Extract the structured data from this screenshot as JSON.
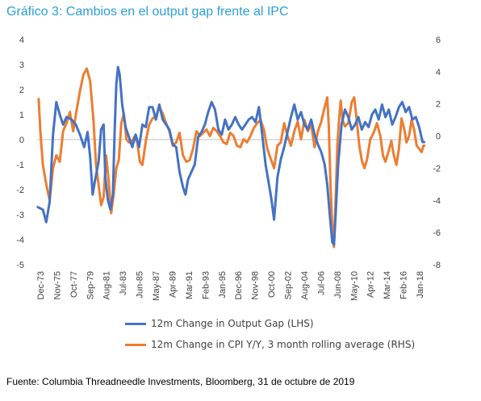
{
  "title": "Gráfico 3: Cambios en el output gap frente al IPC",
  "source": "Fuente: Columbia Threadneedle Investments, Bloomberg, 31 de octubre de 2019",
  "colors": {
    "gap": "#4472C4",
    "cpi": "#ED7D31",
    "axis": "#404040",
    "zero": "#BFBFBF"
  },
  "chart_data": {
    "type": "line",
    "title": "Gráfico 3: Cambios en el output gap frente al IPC",
    "left_axis": {
      "min": -5,
      "max": 4,
      "ticks": [
        "4",
        "3",
        "2",
        "1",
        "0",
        "-1",
        "-2",
        "-3",
        "-4",
        "-5"
      ]
    },
    "right_axis": {
      "min": -8,
      "max": 6,
      "ticks": [
        "6",
        "4",
        "2",
        "0",
        "-2",
        "-4",
        "-6",
        "-8"
      ]
    },
    "x_tick_labels": [
      "Dec-73",
      "Nov-75",
      "Oct-77",
      "Sep-79",
      "Aug-81",
      "Jul-83",
      "Jun-85",
      "May-87",
      "Apr-89",
      "Mar-91",
      "Feb-93",
      "Jan-95",
      "Dec-96",
      "Nov-98",
      "Oct-00",
      "Sep-02",
      "Aug-04",
      "Jul-06",
      "Jun-08",
      "May-10",
      "Apr-12",
      "Mar-14",
      "Feb-16",
      "Jan-18"
    ],
    "x_range": [
      1973.92,
      2019.83
    ],
    "grid": false,
    "legend_position": "bottom",
    "series": [
      {
        "name": "12m Change in Output Gap (LHS)",
        "axis": "left",
        "points": [
          [
            1974.0,
            -2.7
          ],
          [
            1974.6,
            -2.8
          ],
          [
            1975.0,
            -3.3
          ],
          [
            1975.4,
            -2.5
          ],
          [
            1975.8,
            0.2
          ],
          [
            1976.2,
            1.5
          ],
          [
            1976.6,
            1.0
          ],
          [
            1977.0,
            0.6
          ],
          [
            1977.4,
            0.9
          ],
          [
            1978.0,
            0.8
          ],
          [
            1978.5,
            0.6
          ],
          [
            1979.0,
            0.2
          ],
          [
            1979.5,
            -0.3
          ],
          [
            1979.9,
            0.3
          ],
          [
            1980.2,
            -0.7
          ],
          [
            1980.5,
            -2.2
          ],
          [
            1980.8,
            -1.6
          ],
          [
            1981.2,
            -0.9
          ],
          [
            1981.5,
            0.4
          ],
          [
            1981.8,
            0.6
          ],
          [
            1982.0,
            -1.5
          ],
          [
            1982.3,
            -2.4
          ],
          [
            1982.6,
            -2.8
          ],
          [
            1982.9,
            -2.2
          ],
          [
            1983.1,
            0.3
          ],
          [
            1983.3,
            2.2
          ],
          [
            1983.5,
            2.9
          ],
          [
            1983.7,
            2.6
          ],
          [
            1984.0,
            1.4
          ],
          [
            1984.4,
            0.5
          ],
          [
            1984.8,
            0.1
          ],
          [
            1985.2,
            -0.3
          ],
          [
            1985.6,
            0.2
          ],
          [
            1986.0,
            -0.3
          ],
          [
            1986.4,
            0.6
          ],
          [
            1986.8,
            0.5
          ],
          [
            1987.2,
            1.3
          ],
          [
            1987.6,
            1.3
          ],
          [
            1988.0,
            0.8
          ],
          [
            1988.4,
            1.4
          ],
          [
            1988.8,
            0.8
          ],
          [
            1989.2,
            0.6
          ],
          [
            1989.6,
            0.4
          ],
          [
            1990.0,
            -0.2
          ],
          [
            1990.4,
            -0.3
          ],
          [
            1990.8,
            -1.3
          ],
          [
            1991.2,
            -1.9
          ],
          [
            1991.5,
            -2.2
          ],
          [
            1991.8,
            -1.6
          ],
          [
            1992.2,
            -1.3
          ],
          [
            1992.6,
            -1.0
          ],
          [
            1993.0,
            0.1
          ],
          [
            1993.4,
            0.3
          ],
          [
            1993.8,
            0.6
          ],
          [
            1994.2,
            1.1
          ],
          [
            1994.6,
            1.5
          ],
          [
            1995.0,
            1.2
          ],
          [
            1995.4,
            0.4
          ],
          [
            1995.8,
            0.2
          ],
          [
            1996.2,
            0.8
          ],
          [
            1996.6,
            0.4
          ],
          [
            1997.0,
            0.6
          ],
          [
            1997.4,
            0.9
          ],
          [
            1997.8,
            0.6
          ],
          [
            1998.2,
            0.4
          ],
          [
            1998.6,
            0.6
          ],
          [
            1999.0,
            0.8
          ],
          [
            1999.4,
            0.9
          ],
          [
            1999.8,
            0.7
          ],
          [
            2000.2,
            1.3
          ],
          [
            2000.6,
            0.2
          ],
          [
            2001.0,
            -1.0
          ],
          [
            2001.4,
            -1.8
          ],
          [
            2001.7,
            -2.4
          ],
          [
            2002.0,
            -3.2
          ],
          [
            2002.4,
            -1.5
          ],
          [
            2002.8,
            -0.8
          ],
          [
            2003.2,
            -0.3
          ],
          [
            2003.6,
            0.3
          ],
          [
            2004.0,
            0.9
          ],
          [
            2004.4,
            1.4
          ],
          [
            2004.8,
            0.8
          ],
          [
            2005.2,
            1.1
          ],
          [
            2005.6,
            0.6
          ],
          [
            2006.0,
            0.4
          ],
          [
            2006.4,
            0.8
          ],
          [
            2006.8,
            0.2
          ],
          [
            2007.2,
            -0.2
          ],
          [
            2007.6,
            -0.5
          ],
          [
            2008.0,
            -1.0
          ],
          [
            2008.3,
            -1.8
          ],
          [
            2008.6,
            -3.0
          ],
          [
            2008.9,
            -4.1
          ],
          [
            2009.1,
            -4.2
          ],
          [
            2009.3,
            -3.0
          ],
          [
            2009.6,
            -1.0
          ],
          [
            2010.0,
            0.6
          ],
          [
            2010.4,
            1.2
          ],
          [
            2010.8,
            0.9
          ],
          [
            2011.2,
            0.4
          ],
          [
            2011.6,
            0.6
          ],
          [
            2012.0,
            0.9
          ],
          [
            2012.4,
            0.4
          ],
          [
            2012.8,
            0.7
          ],
          [
            2013.2,
            0.5
          ],
          [
            2013.6,
            1.0
          ],
          [
            2014.0,
            1.2
          ],
          [
            2014.4,
            0.8
          ],
          [
            2014.8,
            1.4
          ],
          [
            2015.2,
            0.9
          ],
          [
            2015.6,
            1.2
          ],
          [
            2016.0,
            0.6
          ],
          [
            2016.4,
            0.9
          ],
          [
            2016.8,
            1.3
          ],
          [
            2017.2,
            1.5
          ],
          [
            2017.6,
            1.1
          ],
          [
            2018.0,
            1.3
          ],
          [
            2018.4,
            0.8
          ],
          [
            2018.8,
            0.9
          ],
          [
            2019.2,
            0.5
          ],
          [
            2019.6,
            -0.1
          ],
          [
            2019.8,
            -0.1
          ]
        ]
      },
      {
        "name": "12m Change in CPI Y/Y, 3 month rolling average (RHS)",
        "axis": "right",
        "points": [
          [
            1974.1,
            2.3
          ],
          [
            1974.3,
            0.3
          ],
          [
            1974.6,
            -1.8
          ],
          [
            1975.0,
            -3.0
          ],
          [
            1975.4,
            -4.0
          ],
          [
            1975.8,
            -2.0
          ],
          [
            1976.2,
            -1.2
          ],
          [
            1976.6,
            -1.6
          ],
          [
            1977.0,
            0.3
          ],
          [
            1977.4,
            0.8
          ],
          [
            1977.8,
            1.5
          ],
          [
            1978.2,
            0.3
          ],
          [
            1978.6,
            1.6
          ],
          [
            1979.0,
            2.8
          ],
          [
            1979.4,
            3.8
          ],
          [
            1979.8,
            4.2
          ],
          [
            1980.2,
            3.4
          ],
          [
            1980.6,
            1.0
          ],
          [
            1980.9,
            -1.8
          ],
          [
            1981.2,
            -3.0
          ],
          [
            1981.5,
            -4.3
          ],
          [
            1981.8,
            -3.8
          ],
          [
            1982.1,
            -1.2
          ],
          [
            1982.4,
            -2.8
          ],
          [
            1982.7,
            -4.8
          ],
          [
            1983.0,
            -3.6
          ],
          [
            1983.3,
            -2.0
          ],
          [
            1983.6,
            -1.5
          ],
          [
            1983.9,
            0.8
          ],
          [
            1984.2,
            1.4
          ],
          [
            1984.5,
            -0.2
          ],
          [
            1984.8,
            -0.4
          ],
          [
            1985.2,
            -0.3
          ],
          [
            1985.5,
            0.0
          ],
          [
            1985.8,
            -0.4
          ],
          [
            1986.1,
            -1.6
          ],
          [
            1986.4,
            -1.8
          ],
          [
            1986.8,
            -0.3
          ],
          [
            1987.2,
            0.7
          ],
          [
            1987.6,
            1.1
          ],
          [
            1988.0,
            1.2
          ],
          [
            1988.4,
            1.8
          ],
          [
            1988.8,
            1.4
          ],
          [
            1989.2,
            0.8
          ],
          [
            1989.6,
            0.3
          ],
          [
            1990.0,
            -0.6
          ],
          [
            1990.4,
            -0.4
          ],
          [
            1990.8,
            0.2
          ],
          [
            1991.2,
            -1.2
          ],
          [
            1991.6,
            -1.6
          ],
          [
            1992.0,
            -1.5
          ],
          [
            1992.4,
            -0.8
          ],
          [
            1992.8,
            0.3
          ],
          [
            1993.2,
            0.0
          ],
          [
            1993.6,
            0.2
          ],
          [
            1994.0,
            0.4
          ],
          [
            1994.4,
            0.0
          ],
          [
            1994.8,
            0.5
          ],
          [
            1995.2,
            0.3
          ],
          [
            1995.6,
            0.0
          ],
          [
            1996.0,
            -0.4
          ],
          [
            1996.4,
            -0.5
          ],
          [
            1996.8,
            0.2
          ],
          [
            1997.2,
            0.0
          ],
          [
            1997.6,
            -0.6
          ],
          [
            1998.0,
            -0.7
          ],
          [
            1998.4,
            -0.2
          ],
          [
            1998.8,
            -0.4
          ],
          [
            1999.2,
            0.0
          ],
          [
            1999.6,
            0.5
          ],
          [
            2000.0,
            0.8
          ],
          [
            2000.4,
            1.0
          ],
          [
            2000.8,
            0.4
          ],
          [
            2001.2,
            -0.8
          ],
          [
            2001.6,
            -1.4
          ],
          [
            2002.0,
            -2.0
          ],
          [
            2002.4,
            -0.6
          ],
          [
            2002.8,
            -0.4
          ],
          [
            2003.2,
            0.8
          ],
          [
            2003.6,
            0.0
          ],
          [
            2004.0,
            -0.6
          ],
          [
            2004.4,
            0.3
          ],
          [
            2004.8,
            0.9
          ],
          [
            2005.2,
            -0.2
          ],
          [
            2005.6,
            1.0
          ],
          [
            2006.0,
            0.3
          ],
          [
            2006.4,
            0.7
          ],
          [
            2006.8,
            -0.7
          ],
          [
            2007.2,
            0.3
          ],
          [
            2007.6,
            0.9
          ],
          [
            2008.0,
            1.8
          ],
          [
            2008.3,
            2.4
          ],
          [
            2008.5,
            0.5
          ],
          [
            2008.7,
            -3.2
          ],
          [
            2008.9,
            -5.5
          ],
          [
            2009.1,
            -6.9
          ],
          [
            2009.3,
            -4.0
          ],
          [
            2009.5,
            -0.6
          ],
          [
            2009.7,
            1.0
          ],
          [
            2009.9,
            2.2
          ],
          [
            2010.1,
            1.0
          ],
          [
            2010.4,
            0.6
          ],
          [
            2010.8,
            0.8
          ],
          [
            2011.2,
            2.1
          ],
          [
            2011.5,
            2.4
          ],
          [
            2011.8,
            1.0
          ],
          [
            2012.1,
            -0.6
          ],
          [
            2012.4,
            -1.5
          ],
          [
            2012.7,
            -2.0
          ],
          [
            2013.0,
            -1.5
          ],
          [
            2013.4,
            -0.2
          ],
          [
            2013.8,
            0.2
          ],
          [
            2014.2,
            0.8
          ],
          [
            2014.6,
            0.0
          ],
          [
            2014.9,
            -1.2
          ],
          [
            2015.2,
            -1.6
          ],
          [
            2015.6,
            -0.9
          ],
          [
            2015.9,
            -0.3
          ],
          [
            2016.2,
            -1.2
          ],
          [
            2016.5,
            -1.8
          ],
          [
            2016.8,
            -0.8
          ],
          [
            2017.1,
            1.1
          ],
          [
            2017.4,
            0.5
          ],
          [
            2017.7,
            -0.4
          ],
          [
            2018.0,
            0.0
          ],
          [
            2018.3,
            1.0
          ],
          [
            2018.6,
            0.4
          ],
          [
            2018.9,
            -0.6
          ],
          [
            2019.2,
            -0.8
          ],
          [
            2019.5,
            -1.0
          ],
          [
            2019.7,
            -0.6
          ],
          [
            2019.8,
            -0.6
          ]
        ]
      }
    ]
  }
}
